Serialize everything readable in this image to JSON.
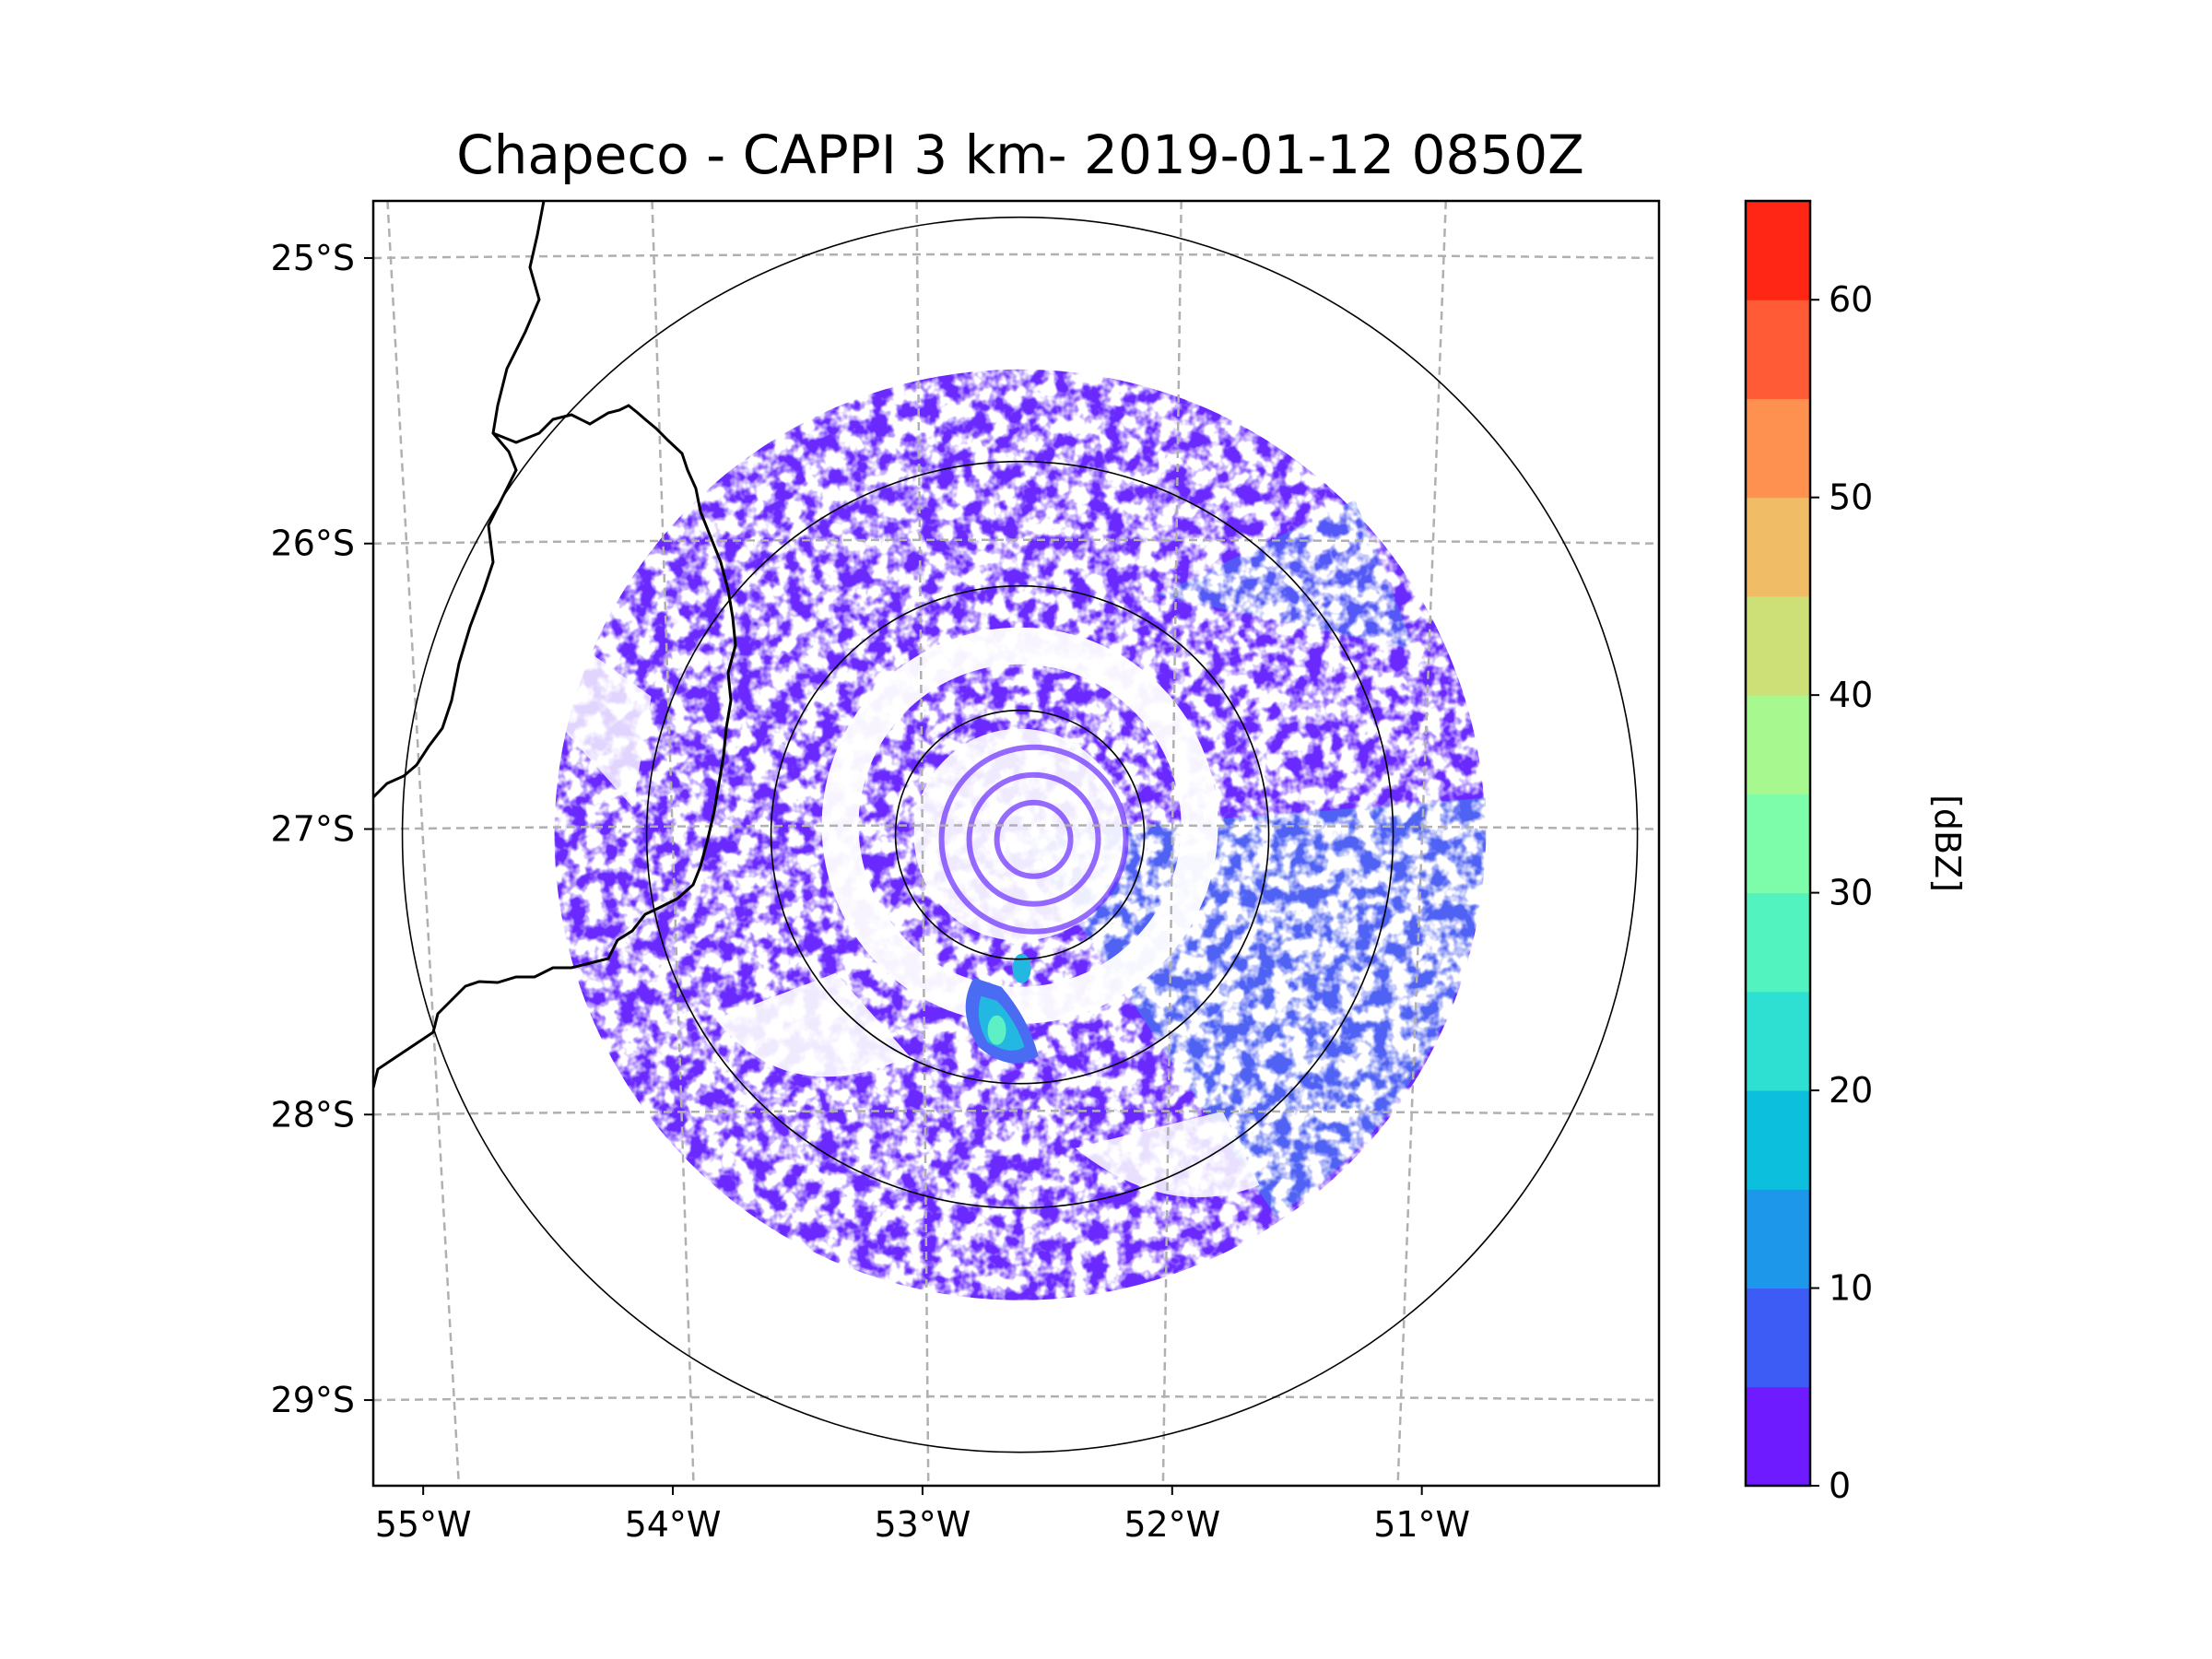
{
  "title": "Chapeco - CAPPI 3 km- 2019-01-12 0850Z",
  "map": {
    "lon_range": [
      -55.2,
      -50.05
    ],
    "lat_range": [
      -29.3,
      -24.8
    ],
    "lat_ticks": [
      {
        "value": -25,
        "label": "25°S"
      },
      {
        "value": -26,
        "label": "26°S"
      },
      {
        "value": -27,
        "label": "27°S"
      },
      {
        "value": -28,
        "label": "28°S"
      },
      {
        "value": -29,
        "label": "29°S"
      }
    ],
    "lon_ticks": [
      {
        "value": -55,
        "label": "55°W"
      },
      {
        "value": -54,
        "label": "54°W"
      },
      {
        "value": -53,
        "label": "53°W"
      },
      {
        "value": -52,
        "label": "52°W"
      },
      {
        "value": -51,
        "label": "51°W"
      }
    ],
    "gridlines": true,
    "radar_center": {
      "lon": -52.61,
      "lat": -27.02
    },
    "range_ring_count": 4
  },
  "colorbar": {
    "label": "[dBZ]",
    "ticks": [
      "0",
      "10",
      "20",
      "30",
      "40",
      "50",
      "60"
    ],
    "range": [
      0,
      65
    ],
    "colors": [
      "#6f1bff",
      "#3d5cf6",
      "#1d97e9",
      "#0cc0dd",
      "#2ee0d2",
      "#52f3be",
      "#7dfca9",
      "#a6f88f",
      "#cde078",
      "#f0bc66",
      "#ff9150",
      "#ff5b36",
      "#ff2616"
    ]
  },
  "echo_colors": {
    "weak": "#6a2cff",
    "moderate": "#4a6cf2",
    "strong": "#22b8e2",
    "core": "#5cf0c4",
    "peak": "#b8f08a"
  }
}
